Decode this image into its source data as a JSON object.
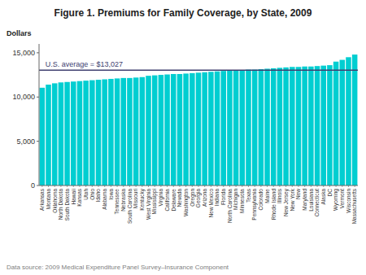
{
  "chart_data": {
    "type": "bar",
    "title": "Figure 1. Premiums for Family Coverage, by State, 2009",
    "y_label": "Dollars",
    "source": "Data source: 2009 Medical Expenditure Panel Survey–Insurance Component",
    "color": "#00CED1",
    "ylim": [
      0,
      16000
    ],
    "yticks": [
      0,
      {
        "value": 5000,
        "label": "5,000"
      },
      {
        "value": 10000,
        "label": "10,000"
      },
      {
        "value": 15000,
        "label": "15,000"
      }
    ],
    "grid": false,
    "annotations": [
      {
        "type": "hline",
        "value": 13027,
        "label": "U.S. average = $13,027",
        "color": "#404070"
      }
    ],
    "categories": [
      "Arkansas",
      "Montana",
      "Oklahoma",
      "North Dakota",
      "South Dakota",
      "Hawaii",
      "Kansas",
      "Utah",
      "Ohio",
      "Idaho",
      "Alabama",
      "Iowa",
      "Tennessee",
      "Nebraska",
      "South Carolina",
      "Missouri",
      "Kentucky",
      "West Virginia",
      "Mississippi",
      "Virginia",
      "California",
      "Delaware",
      "Nevada",
      "Washington",
      "Oregon",
      "Georgia",
      "Arizona",
      "New Mexico",
      "Indiana",
      "Florida",
      "North Carolina",
      "Michigan",
      "Minnesota",
      "Texas",
      "Pennsylvania",
      "Colorado",
      "Maine",
      "Rhode Island",
      "Illinois",
      "New Jersey",
      "New York",
      "New",
      "Maryland",
      "Louisiana",
      "Connecticut",
      "Alaska",
      "DC",
      "Wyoming",
      "Vermont",
      "Wisconsin",
      "Massachusetts"
    ],
    "values": [
      11050,
      11400,
      11550,
      11650,
      11700,
      11750,
      11800,
      11850,
      11900,
      11950,
      12000,
      12050,
      12100,
      12150,
      12150,
      12200,
      12250,
      12400,
      12450,
      12500,
      12550,
      12600,
      12600,
      12650,
      12700,
      12750,
      12800,
      12850,
      12900,
      12950,
      13000,
      13050,
      13050,
      13100,
      13100,
      13150,
      13200,
      13250,
      13300,
      13350,
      13400,
      13400,
      13450,
      13450,
      13500,
      13550,
      13600,
      14000,
      14200,
      14500,
      14800
    ]
  }
}
